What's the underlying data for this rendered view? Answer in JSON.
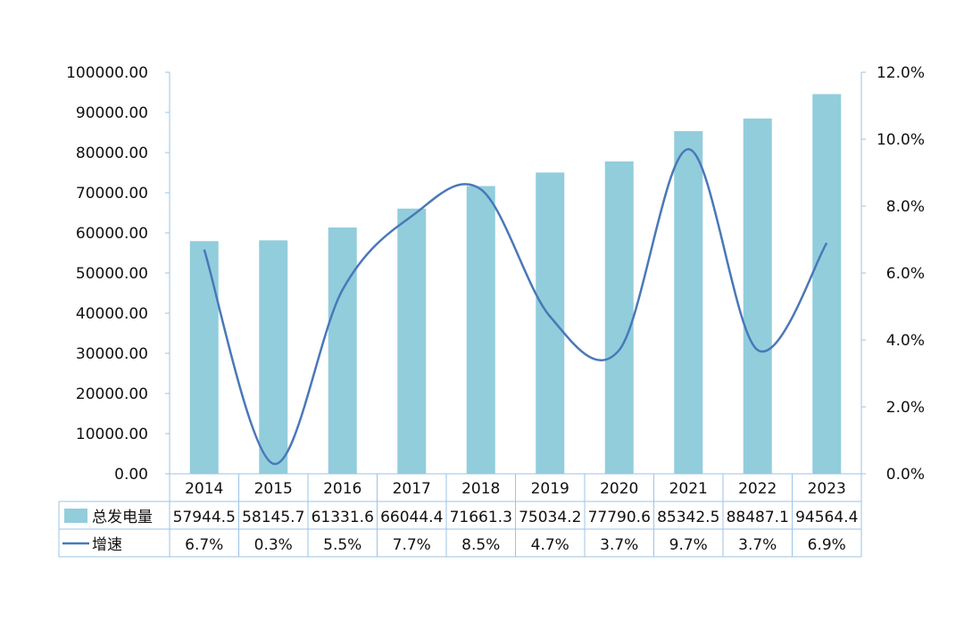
{
  "chart_data": {
    "type": "bar",
    "categories": [
      "2014",
      "2015",
      "2016",
      "2017",
      "2018",
      "2019",
      "2020",
      "2021",
      "2022",
      "2023"
    ],
    "series": [
      {
        "name": "总发电量",
        "type": "bar",
        "axis": "left",
        "color": "#92CDDC",
        "values": [
          57944.5,
          58145.7,
          61331.6,
          66044.4,
          71661.3,
          75034.2,
          77790.6,
          85342.5,
          88487.1,
          94564.4
        ],
        "labels": [
          "57944.5",
          "58145.7",
          "61331.6",
          "66044.4",
          "71661.3",
          "75034.2",
          "77790.6",
          "85342.5",
          "88487.1",
          "94564.4"
        ]
      },
      {
        "name": "增速",
        "type": "line",
        "axis": "right",
        "color": "#4A78B8",
        "values": [
          6.7,
          0.3,
          5.5,
          7.7,
          8.5,
          4.7,
          3.7,
          9.7,
          3.7,
          6.9
        ],
        "labels": [
          "6.7%",
          "0.3%",
          "5.5%",
          "7.7%",
          "8.5%",
          "4.7%",
          "3.7%",
          "9.7%",
          "3.7%",
          "6.9%"
        ]
      }
    ],
    "y_left": {
      "ylim": [
        0,
        100000
      ],
      "ticks": [
        0,
        10000,
        20000,
        30000,
        40000,
        50000,
        60000,
        70000,
        80000,
        90000,
        100000
      ],
      "tick_labels": [
        "0.00",
        "10000.00",
        "20000.00",
        "30000.00",
        "40000.00",
        "50000.00",
        "60000.00",
        "70000.00",
        "80000.00",
        "90000.00",
        "100000.00"
      ]
    },
    "y_right": {
      "ylim": [
        0,
        12
      ],
      "ticks": [
        0,
        2,
        4,
        6,
        8,
        10,
        12
      ],
      "tick_labels": [
        "0.0%",
        "2.0%",
        "4.0%",
        "6.0%",
        "8.0%",
        "10.0%",
        "12.0%"
      ]
    },
    "grid": false,
    "legend": "data-table",
    "data_table": true,
    "axis_line_color": "#9DC3E6"
  }
}
